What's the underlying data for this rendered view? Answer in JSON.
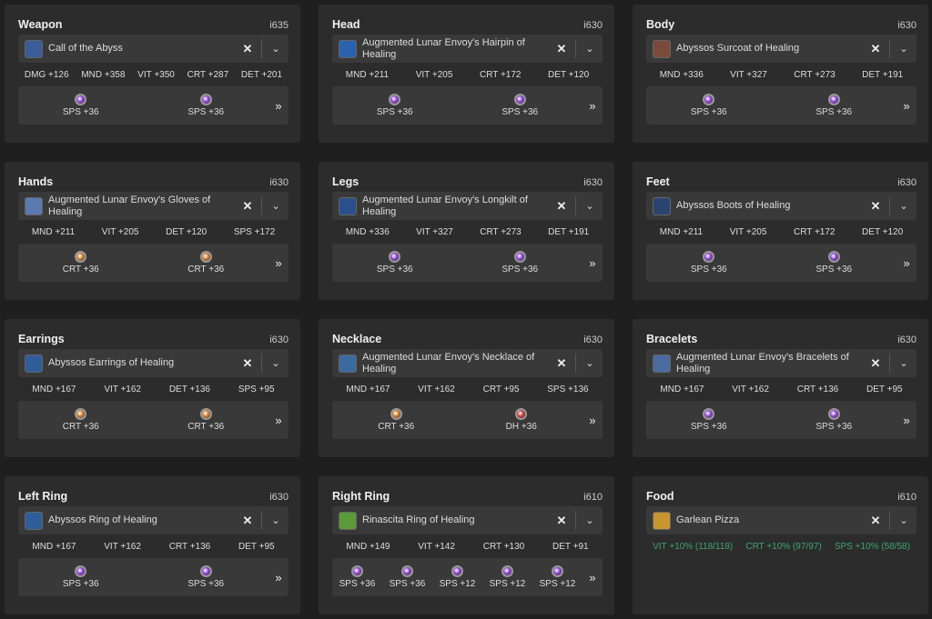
{
  "colors": {
    "SPS": "#8b3fd0",
    "CRT": "#d07a2f",
    "DH": "#c83a3a",
    "food_stat": "#3fa56f"
  },
  "slots": [
    {
      "title": "Weapon",
      "ilvl": "i635",
      "item": "Call of the Abyss",
      "icon_color": "#3a5d9a",
      "stats": [
        "DMG +126",
        "MND +358",
        "VIT +350",
        "CRT +287",
        "DET +201"
      ],
      "materia": [
        {
          "stat": "SPS",
          "label": "SPS +36"
        },
        {
          "stat": "SPS",
          "label": "SPS +36"
        }
      ]
    },
    {
      "title": "Head",
      "ilvl": "i630",
      "item": "Augmented Lunar Envoy's Hairpin of Healing",
      "icon_color": "#2b62b0",
      "stats": [
        "MND +211",
        "VIT +205",
        "CRT +172",
        "DET +120"
      ],
      "materia": [
        {
          "stat": "SPS",
          "label": "SPS +36"
        },
        {
          "stat": "SPS",
          "label": "SPS +36"
        }
      ]
    },
    {
      "title": "Body",
      "ilvl": "i630",
      "item": "Abyssos Surcoat of Healing",
      "icon_color": "#7a4a3a",
      "stats": [
        "MND +336",
        "VIT +327",
        "CRT +273",
        "DET +191"
      ],
      "materia": [
        {
          "stat": "SPS",
          "label": "SPS +36"
        },
        {
          "stat": "SPS",
          "label": "SPS +36"
        }
      ]
    },
    {
      "title": "Hands",
      "ilvl": "i630",
      "item": "Augmented Lunar Envoy's Gloves of Healing",
      "icon_color": "#5a7ab0",
      "stats": [
        "MND +211",
        "VIT +205",
        "DET +120",
        "SPS +172"
      ],
      "materia": [
        {
          "stat": "CRT",
          "label": "CRT +36"
        },
        {
          "stat": "CRT",
          "label": "CRT +36"
        }
      ]
    },
    {
      "title": "Legs",
      "ilvl": "i630",
      "item": "Augmented Lunar Envoy's Longkilt of Healing",
      "icon_color": "#2b4f8a",
      "stats": [
        "MND +336",
        "VIT +327",
        "CRT +273",
        "DET +191"
      ],
      "materia": [
        {
          "stat": "SPS",
          "label": "SPS +36"
        },
        {
          "stat": "SPS",
          "label": "SPS +36"
        }
      ]
    },
    {
      "title": "Feet",
      "ilvl": "i630",
      "item": "Abyssos Boots of Healing",
      "icon_color": "#2a4470",
      "stats": [
        "MND +211",
        "VIT +205",
        "CRT +172",
        "DET +120"
      ],
      "materia": [
        {
          "stat": "SPS",
          "label": "SPS +36"
        },
        {
          "stat": "SPS",
          "label": "SPS +36"
        }
      ]
    },
    {
      "title": "Earrings",
      "ilvl": "i630",
      "item": "Abyssos Earrings of Healing",
      "icon_color": "#2f5d9a",
      "stats": [
        "MND +167",
        "VIT +162",
        "DET +136",
        "SPS +95"
      ],
      "materia": [
        {
          "stat": "CRT",
          "label": "CRT +36"
        },
        {
          "stat": "CRT",
          "label": "CRT +36"
        }
      ]
    },
    {
      "title": "Necklace",
      "ilvl": "i630",
      "item": "Augmented Lunar Envoy's Necklace of Healing",
      "icon_color": "#3a6aa0",
      "stats": [
        "MND +167",
        "VIT +162",
        "CRT +95",
        "SPS +136"
      ],
      "materia": [
        {
          "stat": "CRT",
          "label": "CRT +36"
        },
        {
          "stat": "DH",
          "label": "DH +36"
        }
      ]
    },
    {
      "title": "Bracelets",
      "ilvl": "i630",
      "item": "Augmented Lunar Envoy's Bracelets of Healing",
      "icon_color": "#4a6aa0",
      "stats": [
        "MND +167",
        "VIT +162",
        "CRT +136",
        "DET +95"
      ],
      "materia": [
        {
          "stat": "SPS",
          "label": "SPS +36"
        },
        {
          "stat": "SPS",
          "label": "SPS +36"
        }
      ]
    },
    {
      "title": "Left Ring",
      "ilvl": "i630",
      "item": "Abyssos Ring of Healing",
      "icon_color": "#2f5d9a",
      "stats": [
        "MND +167",
        "VIT +162",
        "CRT +136",
        "DET +95"
      ],
      "materia": [
        {
          "stat": "SPS",
          "label": "SPS +36"
        },
        {
          "stat": "SPS",
          "label": "SPS +36"
        }
      ]
    },
    {
      "title": "Right Ring",
      "ilvl": "i610",
      "item": "Rinascita Ring of Healing",
      "icon_color": "#5a9a3a",
      "stats": [
        "MND +149",
        "VIT +142",
        "CRT +130",
        "DET +91"
      ],
      "materia": [
        {
          "stat": "SPS",
          "label": "SPS +36"
        },
        {
          "stat": "SPS",
          "label": "SPS +36"
        },
        {
          "stat": "SPS",
          "label": "SPS +12"
        },
        {
          "stat": "SPS",
          "label": "SPS +12"
        },
        {
          "stat": "SPS",
          "label": "SPS +12"
        }
      ]
    },
    {
      "title": "Food",
      "ilvl": "i610",
      "item": "Garlean Pizza",
      "icon_color": "#c9952f",
      "food": true,
      "stats": [
        "VIT +10% (118/118)",
        "CRT +10% (97/97)",
        "SPS +10% (58/58)"
      ],
      "materia": []
    }
  ]
}
